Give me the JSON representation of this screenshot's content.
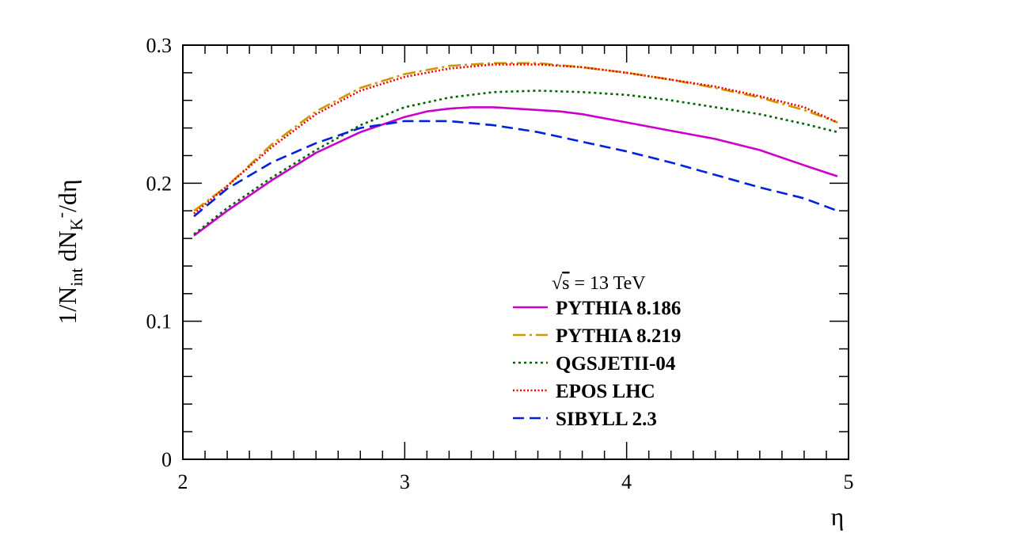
{
  "chart_data": {
    "type": "line",
    "xlabel": "η",
    "ylabel": "1/N_int dN_K-/dη",
    "ylabel_parts": {
      "prefix": "1/N",
      "sub1": "int",
      "mid": " dN",
      "sub2": "K",
      "sup": "-",
      "suffix": "/dη"
    },
    "xlim": [
      2,
      5
    ],
    "ylim": [
      0,
      0.3
    ],
    "xticks": [
      "2",
      "3",
      "4",
      "5"
    ],
    "yticks": [
      "0",
      "0.1",
      "0.2",
      "0.3"
    ],
    "grid": false,
    "legend_position": "bottom-right",
    "annotation": {
      "sqrt_symbol": "√",
      "s": "s",
      "rest": " = 13 TeV"
    },
    "series": [
      {
        "name": "PYTHIA 8.186",
        "color": "#cc00cc",
        "dash": "solid",
        "x": [
          2.05,
          2.2,
          2.4,
          2.6,
          2.8,
          3.0,
          3.1,
          3.2,
          3.3,
          3.4,
          3.5,
          3.6,
          3.7,
          3.8,
          3.9,
          4.0,
          4.2,
          4.4,
          4.6,
          4.8,
          4.95
        ],
        "y": [
          0.162,
          0.18,
          0.202,
          0.222,
          0.237,
          0.248,
          0.252,
          0.254,
          0.255,
          0.255,
          0.254,
          0.253,
          0.252,
          0.25,
          0.247,
          0.244,
          0.238,
          0.232,
          0.224,
          0.213,
          0.205
        ]
      },
      {
        "name": "PYTHIA 8.219",
        "color": "#cc9900",
        "dash": "long-dash-dot",
        "x": [
          2.05,
          2.2,
          2.4,
          2.6,
          2.8,
          3.0,
          3.2,
          3.4,
          3.6,
          3.8,
          4.0,
          4.2,
          4.4,
          4.6,
          4.8,
          4.95
        ],
        "y": [
          0.18,
          0.198,
          0.228,
          0.252,
          0.269,
          0.279,
          0.285,
          0.287,
          0.287,
          0.284,
          0.28,
          0.275,
          0.269,
          0.262,
          0.253,
          0.244
        ]
      },
      {
        "name": "QGSJETII-04",
        "color": "#006600",
        "dash": "dotted",
        "x": [
          2.05,
          2.2,
          2.4,
          2.6,
          2.8,
          3.0,
          3.2,
          3.4,
          3.6,
          3.8,
          4.0,
          4.2,
          4.4,
          4.6,
          4.8,
          4.95
        ],
        "y": [
          0.163,
          0.182,
          0.204,
          0.224,
          0.242,
          0.255,
          0.262,
          0.266,
          0.267,
          0.266,
          0.264,
          0.26,
          0.255,
          0.25,
          0.243,
          0.237
        ]
      },
      {
        "name": "EPOS LHC",
        "color": "#ee0000",
        "dash": "dense-dotted",
        "x": [
          2.05,
          2.2,
          2.4,
          2.6,
          2.8,
          3.0,
          3.2,
          3.4,
          3.6,
          3.8,
          4.0,
          4.2,
          4.4,
          4.6,
          4.8,
          4.95
        ],
        "y": [
          0.178,
          0.198,
          0.226,
          0.25,
          0.267,
          0.277,
          0.283,
          0.286,
          0.286,
          0.284,
          0.28,
          0.275,
          0.27,
          0.263,
          0.255,
          0.244
        ]
      },
      {
        "name": "SIBYLL 2.3",
        "color": "#0022dd",
        "dash": "dashed",
        "x": [
          2.05,
          2.2,
          2.4,
          2.6,
          2.8,
          3.0,
          3.2,
          3.4,
          3.6,
          3.8,
          4.0,
          4.2,
          4.4,
          4.6,
          4.8,
          4.95
        ],
        "y": [
          0.176,
          0.196,
          0.215,
          0.229,
          0.24,
          0.245,
          0.245,
          0.242,
          0.237,
          0.23,
          0.223,
          0.215,
          0.206,
          0.197,
          0.189,
          0.18
        ]
      }
    ]
  }
}
